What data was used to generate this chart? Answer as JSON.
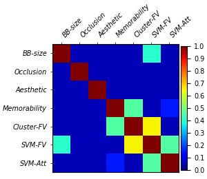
{
  "labels": [
    "BB-size",
    "Occlusion",
    "Aesthetic",
    "Memorability",
    "Cluster-FV",
    "SVM-FV",
    "SVM-Att"
  ],
  "matrix": [
    [
      1.0,
      0.05,
      0.05,
      0.05,
      0.05,
      0.4,
      0.05
    ],
    [
      0.05,
      1.0,
      0.05,
      0.05,
      0.05,
      0.05,
      0.05
    ],
    [
      0.05,
      0.05,
      1.0,
      0.05,
      0.05,
      0.05,
      0.05
    ],
    [
      0.05,
      0.05,
      0.05,
      1.0,
      0.45,
      0.05,
      0.15
    ],
    [
      0.05,
      0.05,
      0.05,
      0.45,
      1.0,
      0.65,
      0.05
    ],
    [
      0.4,
      0.05,
      0.05,
      0.05,
      0.65,
      1.0,
      0.45
    ],
    [
      0.05,
      0.05,
      0.05,
      0.15,
      0.05,
      0.45,
      1.0
    ]
  ],
  "cmap": "jet",
  "vmin": 0.0,
  "vmax": 1.0,
  "colorbar_ticks": [
    0,
    0.1,
    0.2,
    0.3,
    0.4,
    0.5,
    0.6,
    0.7,
    0.8,
    0.9,
    1.0
  ],
  "tick_fontsize": 7,
  "cbar_tick_labels": [
    "0",
    "0.1",
    "0.2",
    "0.3",
    "0.4",
    "0.5",
    "0.6",
    "0.7",
    "0.8",
    "0.9",
    "1"
  ]
}
